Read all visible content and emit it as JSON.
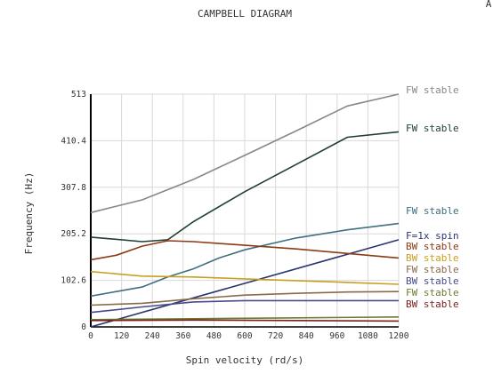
{
  "corner_mark": "A",
  "chart_data": {
    "type": "line",
    "title": "CAMPBELL DIAGRAM",
    "xlabel": "Spin velocity (rd/s)",
    "ylabel": "Frequency (Hz)",
    "xlim": [
      0,
      1200
    ],
    "ylim": [
      0,
      513
    ],
    "xticks": [
      "0",
      "120",
      "240",
      "360",
      "480",
      "600",
      "720",
      "840",
      "960",
      "1080",
      "1200"
    ],
    "yticks": [
      "0",
      "102.6",
      "205.2",
      "307.8",
      "410.4",
      "513"
    ],
    "grid": true,
    "series": [
      {
        "name": "FW stable",
        "color": "#888888",
        "x": [
          0,
          200,
          400,
          600,
          800,
          1000,
          1200
        ],
        "y": [
          252,
          280,
          325,
          378,
          432,
          487,
          513
        ]
      },
      {
        "name": "FW stable",
        "color": "#1f3f34",
        "x": [
          0,
          200,
          300,
          400,
          600,
          800,
          1000,
          1200
        ],
        "y": [
          198,
          188,
          192,
          232,
          298,
          358,
          418,
          430
        ]
      },
      {
        "name": "FW stable",
        "color": "#3f6f80",
        "x": [
          0,
          100,
          200,
          300,
          400,
          500,
          600,
          800,
          1000,
          1200
        ],
        "y": [
          68,
          78,
          88,
          110,
          128,
          152,
          170,
          196,
          214,
          228
        ]
      },
      {
        "name": "F=1x spin",
        "color": "#2a3570",
        "x": [
          0,
          1200
        ],
        "y": [
          0,
          192
        ]
      },
      {
        "name": "BW stable",
        "color": "#8b3a12",
        "x": [
          0,
          100,
          200,
          300,
          400,
          600,
          800,
          1000,
          1200
        ],
        "y": [
          148,
          158,
          178,
          190,
          188,
          180,
          172,
          162,
          152
        ]
      },
      {
        "name": "BW stable",
        "color": "#c8a020",
        "x": [
          0,
          200,
          400,
          600,
          800,
          1000,
          1200
        ],
        "y": [
          122,
          112,
          110,
          106,
          102,
          98,
          94
        ]
      },
      {
        "name": "FW stable",
        "color": "#8a6a4a",
        "x": [
          0,
          200,
          400,
          600,
          800,
          1000,
          1200
        ],
        "y": [
          48,
          52,
          62,
          70,
          74,
          77,
          78
        ]
      },
      {
        "name": "BW stable",
        "color": "#4a4a8a",
        "x": [
          0,
          200,
          400,
          600,
          800,
          1000,
          1200
        ],
        "y": [
          32,
          44,
          55,
          58,
          58,
          58,
          58
        ]
      },
      {
        "name": "FW stable",
        "color": "#707a30",
        "x": [
          0,
          400,
          800,
          1200
        ],
        "y": [
          16,
          18,
          20,
          22
        ]
      },
      {
        "name": "BW stable",
        "color": "#7a1f1f",
        "x": [
          0,
          400,
          800,
          1200
        ],
        "y": [
          14,
          15,
          14,
          13
        ]
      }
    ]
  }
}
